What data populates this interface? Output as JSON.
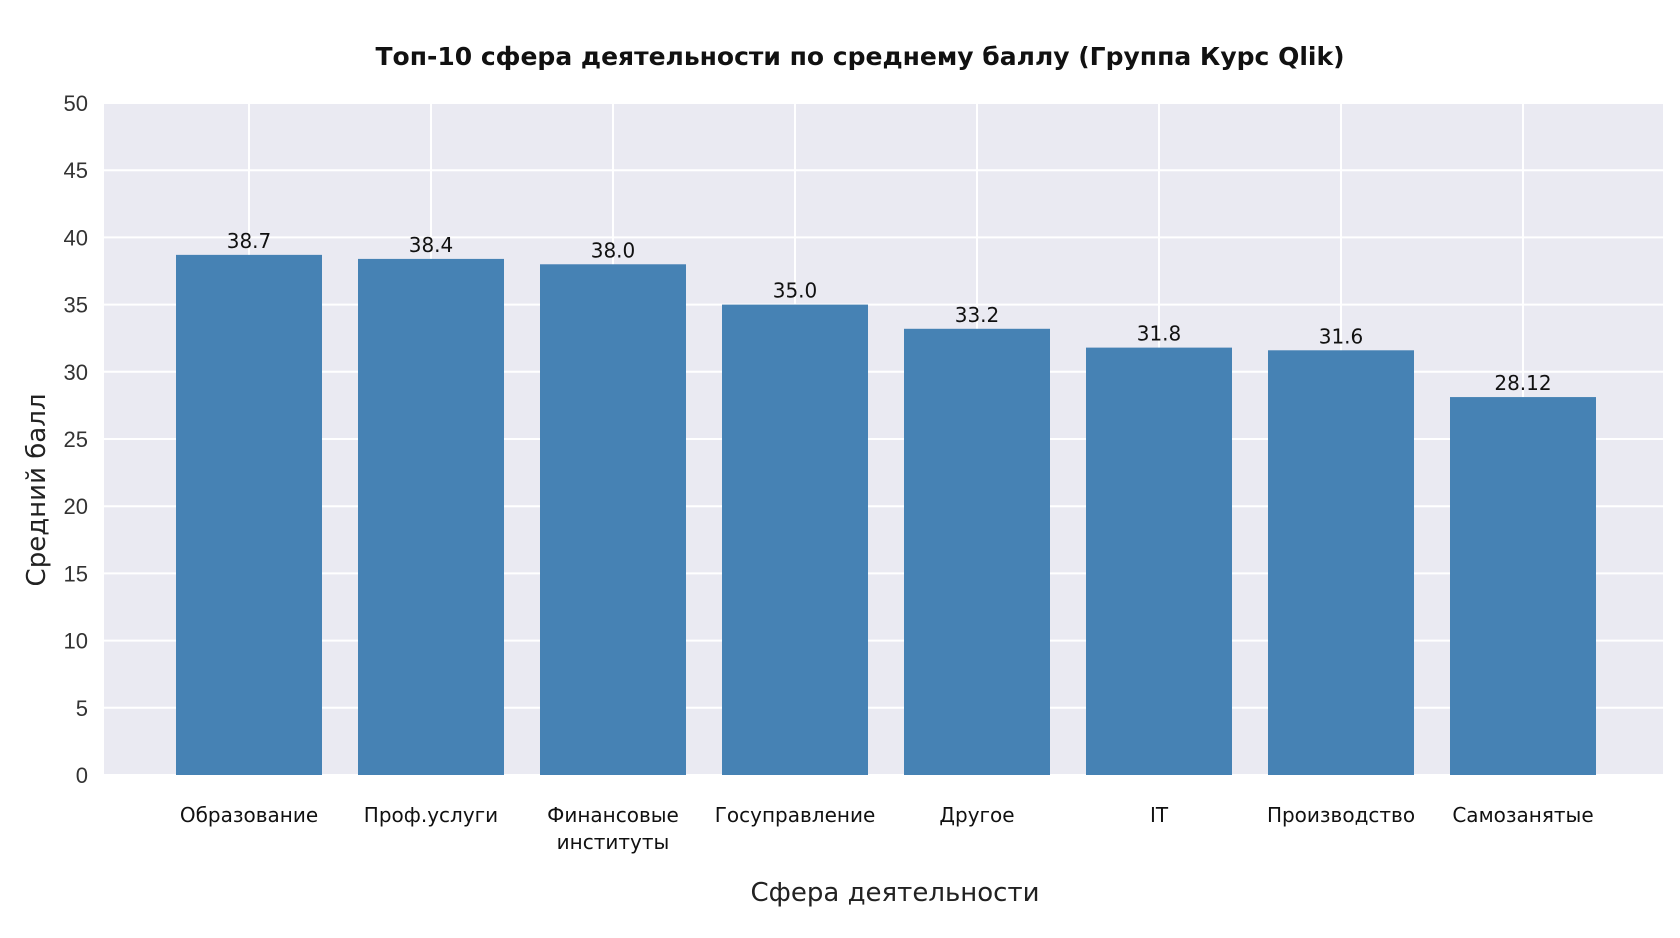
{
  "chart_data": {
    "type": "bar",
    "title": "Топ-10 сфера деятельности по среднему баллу (Группа Курс Qlik)",
    "xlabel": "Сфера деятельности",
    "ylabel": "Средний балл",
    "categories": [
      "Образование",
      "Проф.услуги",
      "Финансовые институты",
      "Госуправление",
      "Другое",
      "IT",
      "Производство",
      "Самозанятые"
    ],
    "category_lines": [
      [
        "Образование"
      ],
      [
        "Проф.услуги"
      ],
      [
        "Финансовые",
        "институты"
      ],
      [
        "Госуправление"
      ],
      [
        "Другое"
      ],
      [
        "IT"
      ],
      [
        "Производство"
      ],
      [
        "Самозанятые"
      ]
    ],
    "values": [
      38.7,
      38.4,
      38.0,
      35.0,
      33.2,
      31.8,
      31.6,
      28.12
    ],
    "data_labels": [
      "38.7",
      "38.4",
      "38.0",
      "35.0",
      "33.2",
      "31.8",
      "31.6",
      "28.12"
    ],
    "ylim": [
      0,
      50
    ],
    "yticks": [
      0,
      5,
      10,
      15,
      20,
      25,
      30,
      35,
      40,
      45,
      50
    ],
    "grid": true,
    "colors": {
      "bar": "#4682b4",
      "plot_background": "#eaeaf2",
      "grid": "#ffffff"
    }
  }
}
